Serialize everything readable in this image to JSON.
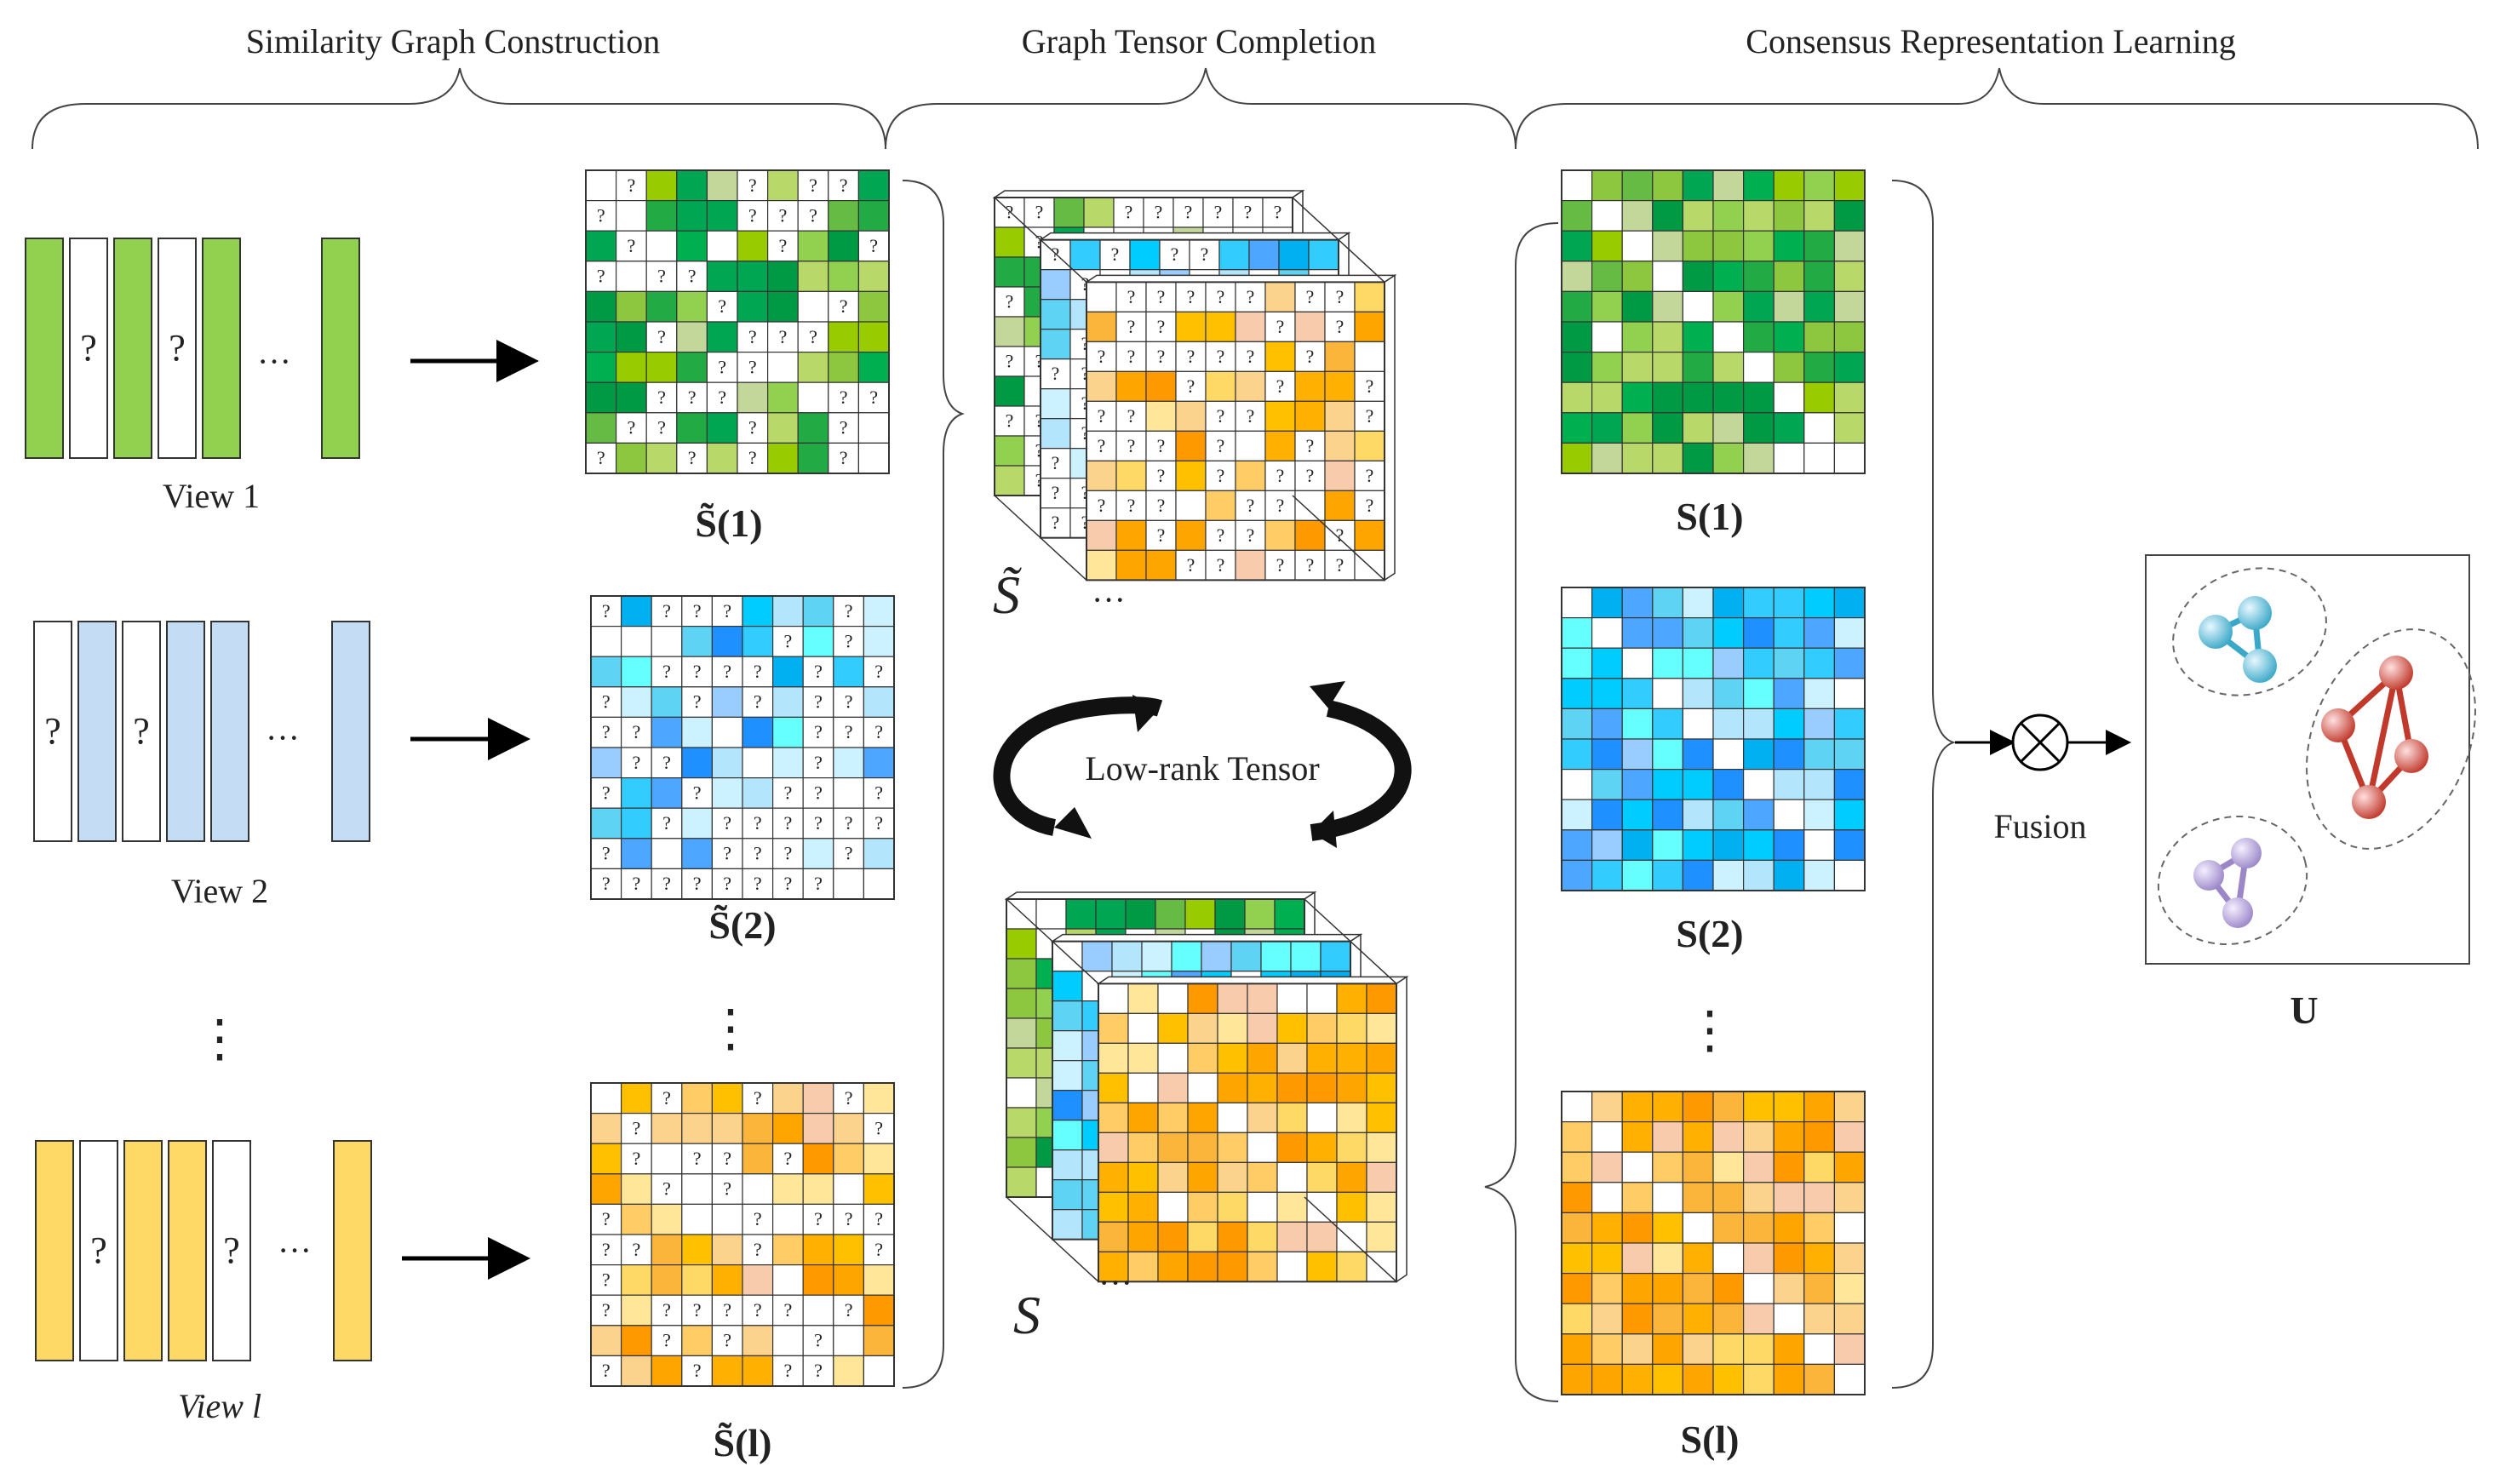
{
  "sections": {
    "similarity": "Similarity Graph Construction",
    "completion": "Graph Tensor Completion",
    "consensus": "Consensus Representation Learning"
  },
  "views": {
    "view1": "View 1",
    "view2": "View 2",
    "viewl": "View l",
    "ellipsis": "···",
    "vdots": "⋮",
    "missing_mark": "?"
  },
  "matrices": {
    "incomplete_1": "S̃(1)",
    "incomplete_2": "S̃(2)",
    "incomplete_l": "S̃(l)",
    "complete_1": "S(1)",
    "complete_2": "S(2)",
    "complete_l": "S(l)"
  },
  "tensor": {
    "incomplete_label": "S̃",
    "complete_label": "S",
    "cycle_label": "Low-rank Tensor",
    "depth_dots": "···"
  },
  "fusion": {
    "label": "Fusion",
    "operator": "⊗",
    "output": "U"
  },
  "colors": {
    "green": [
      "#009944",
      "#00b050",
      "#22aa44",
      "#8dc63f",
      "#92d050",
      "#b8d86a",
      "#99cc00",
      "#c4d79b",
      "#00a651",
      "#66bb44"
    ],
    "blue": [
      "#00b0f0",
      "#33ccff",
      "#66ffff",
      "#99ccff",
      "#4da6ff",
      "#1e90ff",
      "#ccf2ff",
      "#b3e5fc",
      "#5fd3f3",
      "#00ccff"
    ],
    "orange": [
      "#ffc000",
      "#ffd966",
      "#ff9900",
      "#ffcc66",
      "#fbd38d",
      "#f8cbad",
      "#ffb000",
      "#ffe699",
      "#fab53a",
      "#ffa500"
    ],
    "view_green": "#92d050",
    "view_blue": "#c5dcf5",
    "view_orange": "#ffd966",
    "cluster_cyan": "#5bc0de",
    "cluster_red": "#c0392b",
    "cluster_purple": "#a08cc8"
  }
}
